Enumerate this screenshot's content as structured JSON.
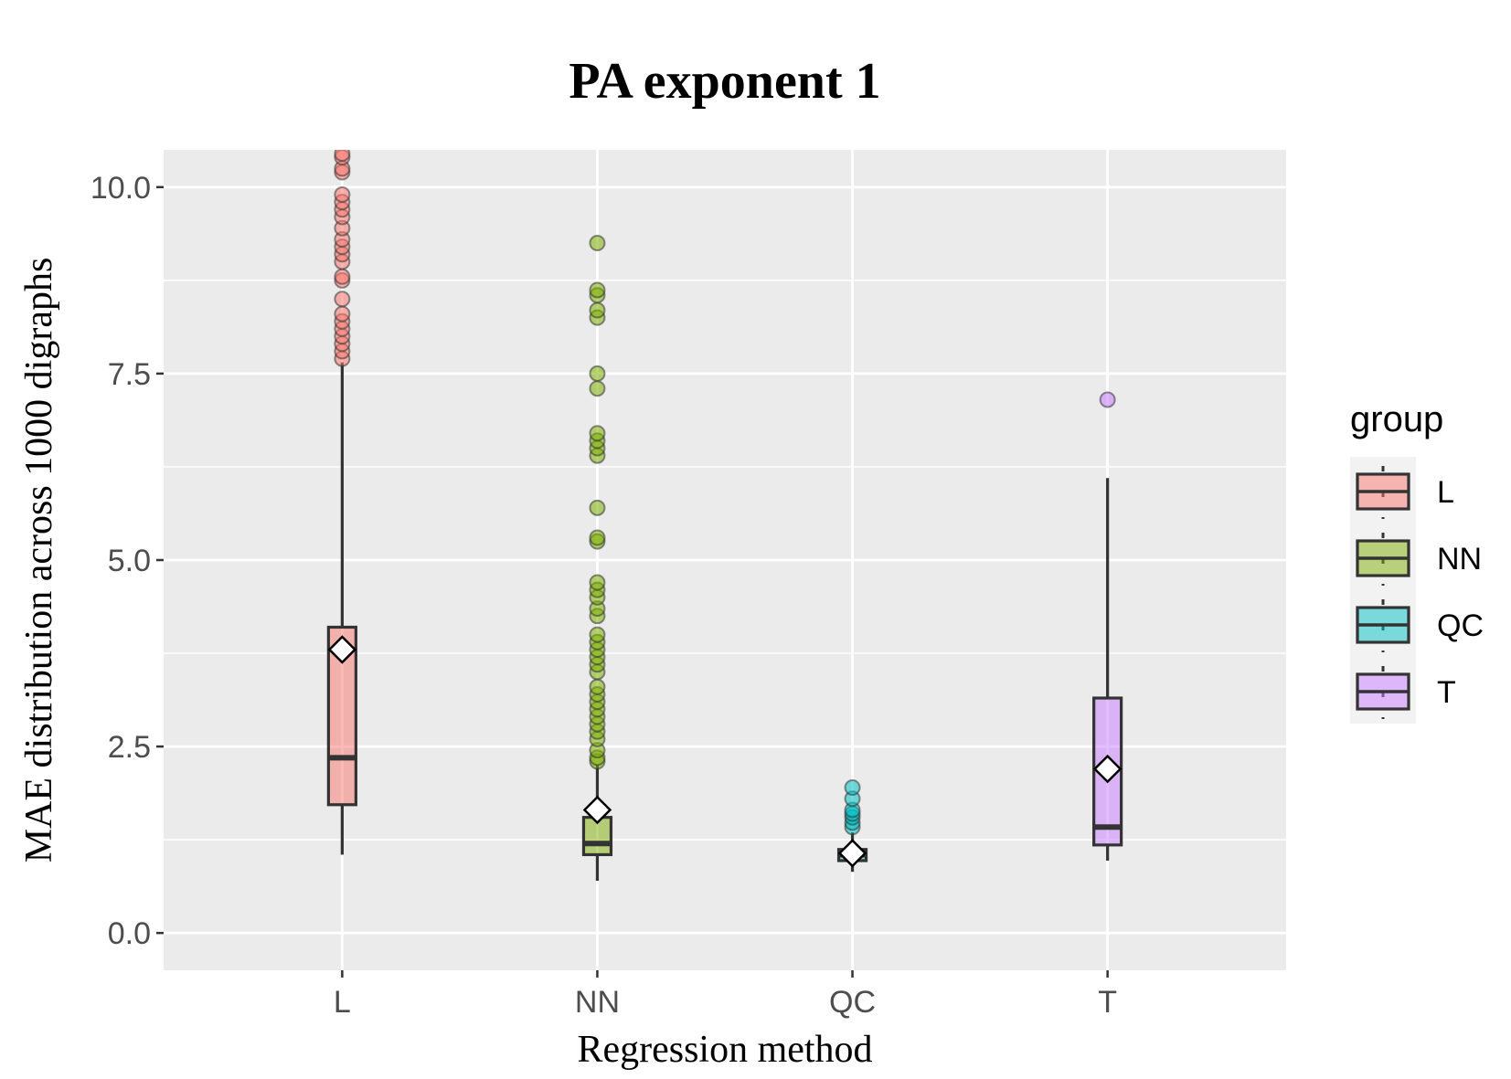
{
  "chart_data": {
    "type": "boxplot",
    "title": "PA exponent 1",
    "xlabel": "Regression method",
    "ylabel": "MAE distribution across 1000 digraphs",
    "ylim": [
      -0.5,
      10.5
    ],
    "yticks": [
      0.0,
      2.5,
      5.0,
      7.5,
      10.0
    ],
    "ytick_labels": [
      "0.0",
      "2.5",
      "5.0",
      "7.5",
      "10.0"
    ],
    "grid": true,
    "legend": {
      "title": "group",
      "position": "right"
    },
    "categories": [
      "L",
      "NN",
      "QC",
      "T"
    ],
    "colors": {
      "L": "#F8766D",
      "NN": "#7CAE00",
      "QC": "#00BFC4",
      "T": "#C77CFF"
    },
    "boxes": [
      {
        "group": "L",
        "whisker_low": 1.05,
        "q1": 1.72,
        "median": 2.35,
        "q3": 4.1,
        "whisker_high": 7.65,
        "mean": 3.8,
        "outliers": [
          7.7,
          7.8,
          7.9,
          8.0,
          8.1,
          8.2,
          8.3,
          8.5,
          8.75,
          8.8,
          9.0,
          9.1,
          9.2,
          9.3,
          9.45,
          9.6,
          9.7,
          9.8,
          9.9,
          10.2,
          10.25,
          10.4,
          10.45
        ]
      },
      {
        "group": "NN",
        "whisker_low": 0.7,
        "q1": 1.05,
        "median": 1.2,
        "q3": 1.55,
        "whisker_high": 2.25,
        "mean": 1.65,
        "outliers": [
          2.3,
          2.35,
          2.45,
          2.6,
          2.7,
          2.8,
          2.9,
          3.0,
          3.1,
          3.2,
          3.3,
          3.5,
          3.6,
          3.7,
          3.8,
          3.9,
          4.0,
          4.25,
          4.35,
          4.5,
          4.6,
          4.7,
          5.25,
          5.3,
          5.7,
          6.4,
          6.5,
          6.6,
          6.7,
          7.3,
          7.5,
          8.25,
          8.35,
          8.55,
          8.62,
          9.25
        ]
      },
      {
        "group": "QC",
        "whisker_low": 0.82,
        "q1": 0.97,
        "median": 1.05,
        "q3": 1.12,
        "whisker_high": 1.35,
        "mean": 1.07,
        "outliers": [
          1.42,
          1.48,
          1.55,
          1.6,
          1.65,
          1.8,
          1.95
        ]
      },
      {
        "group": "T",
        "whisker_low": 0.97,
        "q1": 1.18,
        "median": 1.42,
        "q3": 3.15,
        "whisker_high": 6.1,
        "mean": 2.2,
        "outliers": [
          7.15
        ]
      }
    ]
  }
}
